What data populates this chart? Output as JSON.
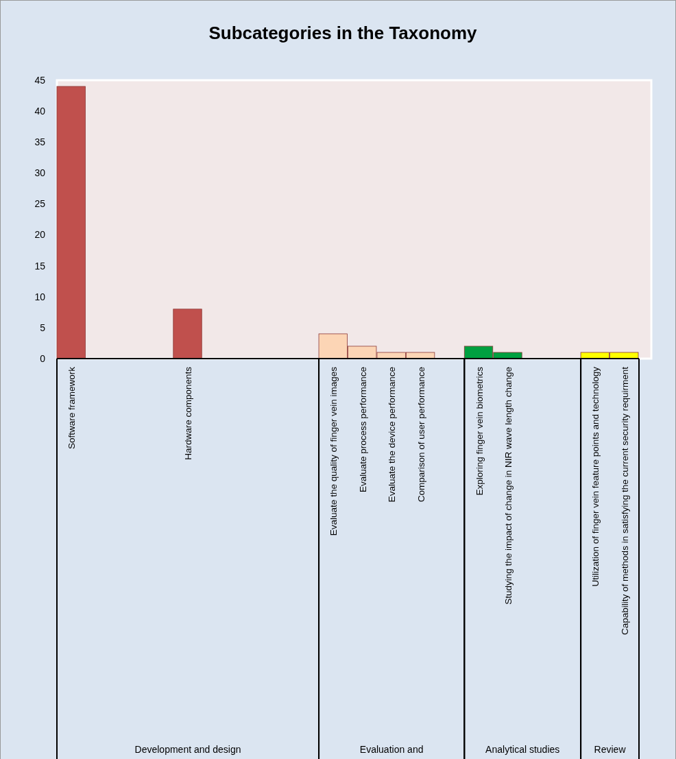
{
  "chart_data": {
    "type": "bar",
    "title": "Subcategories in the Taxonomy",
    "categories": [
      "Software framework",
      null,
      null,
      null,
      "Hardware components",
      null,
      null,
      null,
      null,
      "Evaluate the quality of finger vein images",
      "Evaluate process performance",
      "Evaluate the device performance",
      "Comparison of  user performance",
      null,
      "Exploring  finger vein biometrics",
      "Studying the impact of change in NIR wave length change",
      null,
      null,
      "Utilization of finger vein feature points and technology",
      "Capability of methods in satisfying  the current security requirment"
    ],
    "values": [
      44,
      null,
      null,
      null,
      8,
      null,
      null,
      null,
      null,
      4,
      2,
      1,
      1,
      null,
      2,
      1,
      null,
      null,
      1,
      1
    ],
    "colors": [
      "#c0504d",
      null,
      null,
      null,
      "#c0504d",
      null,
      null,
      null,
      null,
      "#fcd5b5",
      "#fcd5b5",
      "#fcd5b5",
      "#fcd5b5",
      null,
      "#00a040",
      "#00a040",
      null,
      null,
      "#ffff00",
      "#ffff00"
    ],
    "ylim": [
      0,
      45
    ],
    "yticks": [
      0,
      5,
      10,
      15,
      20,
      25,
      30,
      35,
      40,
      45
    ],
    "grid": false,
    "annotations": [
      "Development and design",
      "Evaluation and",
      "Analytical studies",
      "Review"
    ]
  }
}
